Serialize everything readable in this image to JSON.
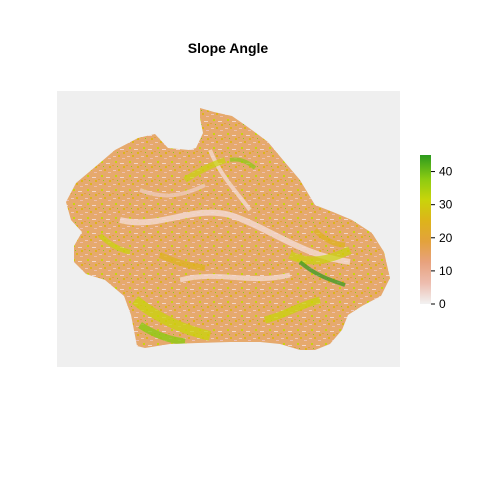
{
  "title": "Slope Angle",
  "map": {
    "panel_color": "#EFEFEF",
    "raster_palette": [
      "#F2F2F2",
      "#EDBDAF",
      "#E8A27E",
      "#E3A23C",
      "#DDB41A",
      "#C9D40A",
      "#8CCB12",
      "#2C9A1E"
    ]
  },
  "legend": {
    "min": 0,
    "max": 45,
    "ticks": [
      {
        "value": 0,
        "label": "0"
      },
      {
        "value": 10,
        "label": "10"
      },
      {
        "value": 20,
        "label": "20"
      },
      {
        "value": 30,
        "label": "30"
      },
      {
        "value": 40,
        "label": "40"
      }
    ],
    "gradient": [
      "#F2F2F2",
      "#EDBDAF",
      "#E8A27E",
      "#E3A23C",
      "#DDB41A",
      "#C9D40A",
      "#8CCB12",
      "#2C9A1E"
    ]
  }
}
